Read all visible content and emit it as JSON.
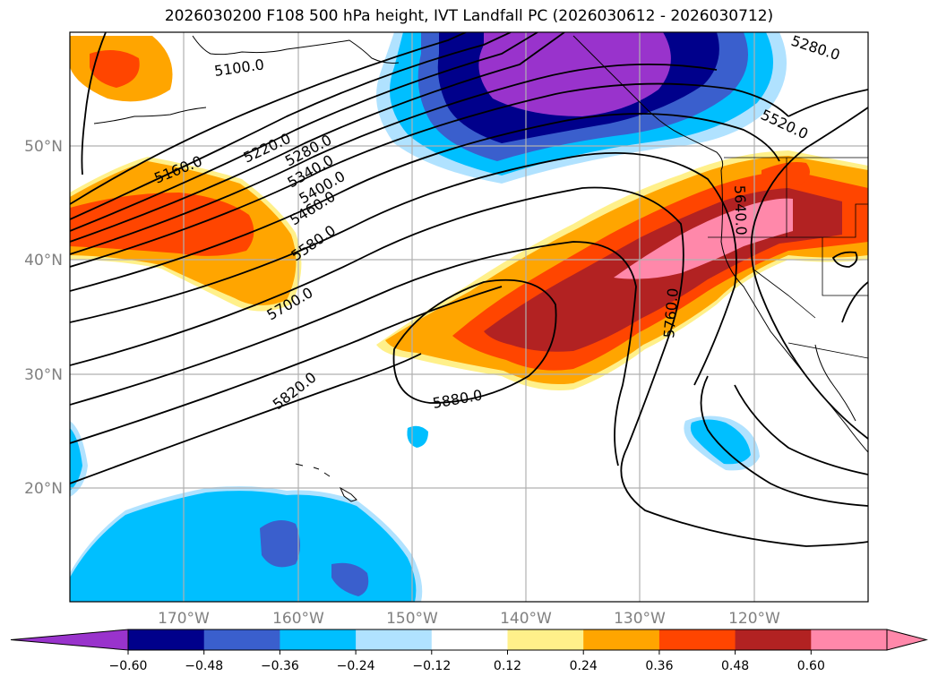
{
  "title": "2026030200 F108 500 hPa height, IVT Landfall PC (2026030612 - 2026030712)",
  "axes": {
    "lat_labels": [
      "50°N",
      "40°N",
      "30°N",
      "20°N"
    ],
    "lon_labels": [
      "170°W",
      "160°W",
      "150°W",
      "140°W",
      "130°W",
      "120°W"
    ]
  },
  "contour_labels": [
    "5100.0",
    "5160.0",
    "5220.0",
    "5280.0",
    "5340.0",
    "5400.0",
    "5460.0",
    "5580.0",
    "5700.0",
    "5820.0",
    "5880.0",
    "5760.0",
    "5640.0",
    "5520.0",
    "5280.0"
  ],
  "colorbar": {
    "ticks": [
      "−0.60",
      "−0.48",
      "−0.36",
      "−0.24",
      "−0.12",
      "0.12",
      "0.24",
      "0.36",
      "0.48",
      "0.60"
    ],
    "colors": [
      "#9933cc",
      "#00008b",
      "#3a5fcd",
      "#00bfff",
      "#b0e2ff",
      "#ffffff",
      "#fff08a",
      "#ffa500",
      "#ff4500",
      "#b22222",
      "#ff88aa",
      "#ff88aa"
    ]
  },
  "fill_colors": {
    "purple": "#9933cc",
    "navy": "#00008b",
    "blue": "#3a5fcd",
    "cyan": "#00bfff",
    "lightblue": "#b0e2ff",
    "yellow": "#fff08a",
    "orange": "#ffa500",
    "redorange": "#ff4500",
    "darkred": "#b22222",
    "pink": "#ff88aa"
  }
}
